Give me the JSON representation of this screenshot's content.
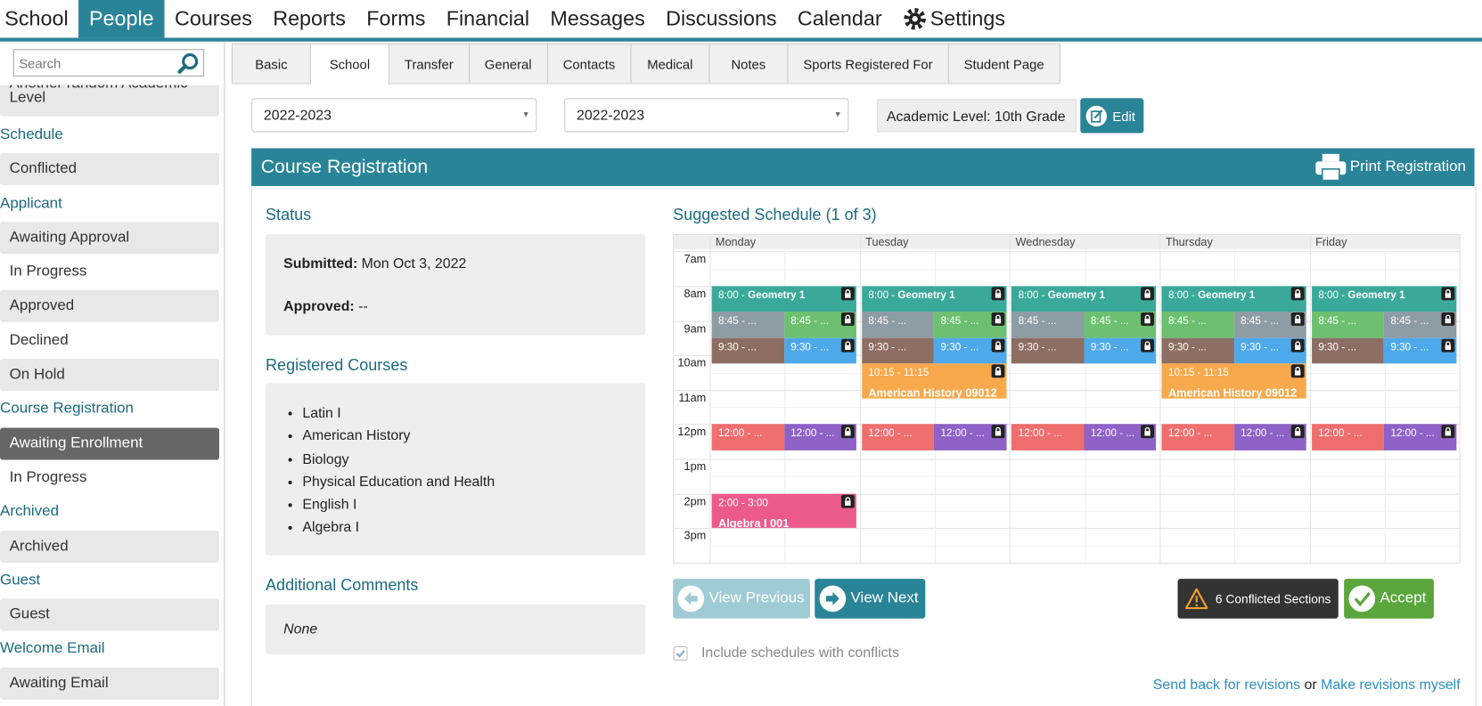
{
  "nav": {
    "items": [
      "School",
      "People",
      "Courses",
      "Reports",
      "Forms",
      "Financial",
      "Messages",
      "Discussions",
      "Calendar",
      "Settings"
    ],
    "active": 1
  },
  "search": {
    "placeholder": "Search"
  },
  "sidebar": {
    "partial": "Another random Academic Level",
    "groups": [
      {
        "heading": "Schedule",
        "items": [
          "Conflicted"
        ]
      },
      {
        "heading": "Applicant",
        "items": [
          "Awaiting Approval",
          "In Progress",
          "Approved",
          "Declined",
          "On Hold"
        ]
      },
      {
        "heading": "Course Registration",
        "items": [
          "Awaiting Enrollment",
          "In Progress"
        ]
      },
      {
        "heading": "Archived",
        "items": [
          "Archived"
        ]
      },
      {
        "heading": "Guest",
        "items": [
          "Guest"
        ]
      },
      {
        "heading": "Welcome Email",
        "items": [
          "Awaiting Email"
        ]
      }
    ],
    "selected": {
      "group": 2,
      "item": 0
    }
  },
  "tabs": {
    "items": [
      "Basic",
      "School",
      "Transfer",
      "General",
      "Contacts",
      "Medical",
      "Notes",
      "Sports Registered For",
      "Student Page"
    ],
    "active": 1
  },
  "filters": {
    "year_1": "2022-2023",
    "year_2": "2022-2023",
    "academic_level": "Academic Level: 10th Grade",
    "edit": "Edit"
  },
  "panel": {
    "title": "Course Registration",
    "print": "Print Registration"
  },
  "status": {
    "heading": "Status",
    "submitted_label": "Submitted:",
    "submitted": "Mon Oct 3, 2022",
    "approved_label": "Approved:",
    "approved": "--"
  },
  "courses": {
    "heading": "Registered Courses",
    "items": [
      "Latin I",
      "American History",
      "Biology",
      "Physical Education and Health",
      "English I",
      "Algebra I"
    ]
  },
  "comments": {
    "heading": "Additional Comments",
    "text": "None"
  },
  "schedule": {
    "heading": "Suggested Schedule (1 of 3)",
    "days": [
      "Monday",
      "Tuesday",
      "Wednesday",
      "Thursday",
      "Friday"
    ],
    "times": [
      "7am",
      "8am",
      "9am",
      "10am",
      "11am",
      "12pm",
      "1pm",
      "2pm",
      "3pm"
    ],
    "events": [
      [
        [
          {
            "time": "8:00 - ",
            "title": "Geometry 1",
            "color": "#3aa99a"
          }
        ],
        [
          {
            "time": "8:45 - ...",
            "color": "#8e9ca3"
          },
          {
            "time": "8:45 - ...",
            "color": "#6cc070"
          }
        ],
        [
          {
            "time": "9:30 - ...",
            "color": "#8d6e63"
          },
          {
            "time": "9:30 - ...",
            "color": "#4ea9ea"
          }
        ],
        [
          {
            "time": "12:00 - ...",
            "color": "#ef6e6e"
          },
          {
            "time": "12:00 - ...",
            "color": "#8e62c6"
          }
        ],
        [
          {
            "time": "2:00 - 3:00",
            "title": "Algebra I 001",
            "color": "#ec5a8c"
          }
        ]
      ],
      [
        [
          {
            "time": "8:00 - ",
            "title": "Geometry 1",
            "color": "#3aa99a"
          }
        ],
        [
          {
            "time": "8:45 - ...",
            "color": "#8e9ca3"
          },
          {
            "time": "8:45 - ...",
            "color": "#6cc070"
          }
        ],
        [
          {
            "time": "9:30 - ...",
            "color": "#8d6e63"
          },
          {
            "time": "9:30 - ...",
            "color": "#4ea9ea"
          }
        ],
        [
          {
            "time": "10:15 - 11:15",
            "title": "American History 09012",
            "color": "#f8a94c"
          }
        ],
        [
          {
            "time": "12:00 - ...",
            "color": "#ef6e6e"
          },
          {
            "time": "12:00 - ...",
            "color": "#8e62c6"
          }
        ]
      ],
      [
        [
          {
            "time": "8:00 - ",
            "title": "Geometry 1",
            "color": "#3aa99a"
          }
        ],
        [
          {
            "time": "8:45 - ...",
            "color": "#8e9ca3"
          },
          {
            "time": "8:45 - ...",
            "color": "#6cc070"
          }
        ],
        [
          {
            "time": "9:30 - ...",
            "color": "#8d6e63"
          },
          {
            "time": "9:30 - ...",
            "color": "#4ea9ea"
          }
        ],
        [
          {
            "time": "12:00 - ...",
            "color": "#ef6e6e"
          },
          {
            "time": "12:00 - ...",
            "color": "#8e62c6"
          }
        ]
      ],
      [
        [
          {
            "time": "8:00 - ",
            "title": "Geometry 1",
            "color": "#3aa99a"
          }
        ],
        [
          {
            "time": "8:45 - ...",
            "color": "#6cc070"
          },
          {
            "time": "8:45 - ...",
            "color": "#8e9ca3"
          }
        ],
        [
          {
            "time": "9:30 - ...",
            "color": "#8d6e63"
          },
          {
            "time": "9:30 - ...",
            "color": "#4ea9ea"
          }
        ],
        [
          {
            "time": "10:15 - 11:15",
            "title": "American History 09012",
            "color": "#f8a94c"
          }
        ],
        [
          {
            "time": "12:00 - ...",
            "color": "#ef6e6e"
          },
          {
            "time": "12:00 - ...",
            "color": "#8e62c6"
          }
        ]
      ],
      [
        [
          {
            "time": "8:00 - ",
            "title": "Geometry 1",
            "color": "#3aa99a"
          }
        ],
        [
          {
            "time": "8:45 - ...",
            "color": "#6cc070"
          },
          {
            "time": "8:45 - ...",
            "color": "#8e9ca3"
          }
        ],
        [
          {
            "time": "9:30 - ...",
            "color": "#8d6e63"
          },
          {
            "time": "9:30 - ...",
            "color": "#4ea9ea"
          }
        ],
        [
          {
            "time": "12:00 - ...",
            "color": "#ef6e6e"
          },
          {
            "time": "12:00 - ...",
            "color": "#8e62c6"
          }
        ]
      ]
    ]
  },
  "actions": {
    "previous": "View Previous",
    "next": "View Next",
    "conflicts": "6 Conflicted Sections",
    "accept": "Accept",
    "include": "Include schedules with conflicts",
    "include_checked": true,
    "send_back": "Send back for revisions",
    "or": "or",
    "revise": "Make revisions myself"
  }
}
